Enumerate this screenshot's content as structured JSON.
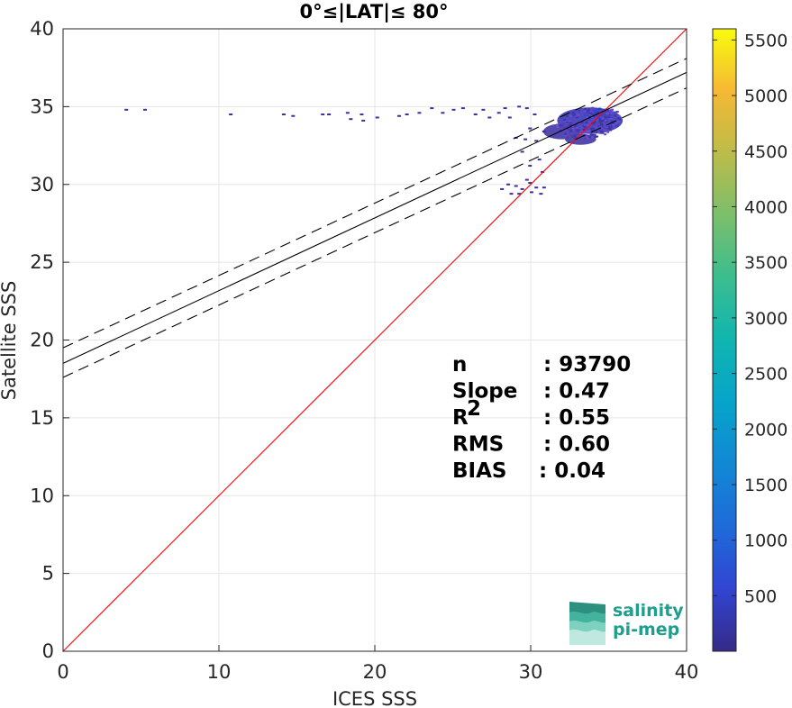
{
  "chart_data": {
    "type": "scatter",
    "subtype": "density-scatter",
    "title": "0°≤|LAT|≤ 80°",
    "xlabel": "ICES SSS",
    "ylabel": "Satellite SSS",
    "xlim": [
      0,
      40
    ],
    "ylim": [
      0,
      40
    ],
    "xticks": [
      0,
      10,
      20,
      30,
      40
    ],
    "yticks": [
      0,
      5,
      10,
      15,
      20,
      25,
      30,
      35,
      40
    ],
    "grid": true,
    "colorbar": {
      "colormap": "parula",
      "ticks": [
        500,
        1000,
        1500,
        2000,
        2500,
        3000,
        3500,
        4000,
        4500,
        5000,
        5500
      ],
      "range": [
        1,
        5600
      ]
    },
    "lines": [
      {
        "name": "identity",
        "color": "#ff0000",
        "style": "solid",
        "x": [
          0,
          40
        ],
        "y": [
          0,
          40
        ]
      },
      {
        "name": "fit",
        "color": "#000000",
        "style": "solid",
        "x": [
          0,
          40
        ],
        "y": [
          18.5,
          37.2
        ]
      },
      {
        "name": "fit-upper",
        "color": "#000000",
        "style": "dashed",
        "x": [
          0,
          40
        ],
        "y": [
          19.5,
          38.1
        ]
      },
      {
        "name": "fit-lower",
        "color": "#000000",
        "style": "dashed",
        "x": [
          0,
          40
        ],
        "y": [
          17.6,
          36.2
        ]
      }
    ],
    "points": [
      [
        4.0,
        34.8
      ],
      [
        5.2,
        34.8
      ],
      [
        10.7,
        34.5
      ],
      [
        14.1,
        34.5
      ],
      [
        14.7,
        34.4
      ],
      [
        16.6,
        34.5
      ],
      [
        17.0,
        34.5
      ],
      [
        18.2,
        34.6
      ],
      [
        18.4,
        34.2
      ],
      [
        19.1,
        34.5
      ],
      [
        19.2,
        34.1
      ],
      [
        20.1,
        34.3
      ],
      [
        21.5,
        34.4
      ],
      [
        22.0,
        34.5
      ],
      [
        22.8,
        34.6
      ],
      [
        23.6,
        34.9
      ],
      [
        24.3,
        34.6
      ],
      [
        25.0,
        34.8
      ],
      [
        25.6,
        34.9
      ],
      [
        26.4,
        34.5
      ],
      [
        26.9,
        34.8
      ],
      [
        27.3,
        34.3
      ],
      [
        27.9,
        34.6
      ],
      [
        28.3,
        34.9
      ],
      [
        28.6,
        34.3
      ],
      [
        29.2,
        35.0
      ],
      [
        29.7,
        34.9
      ],
      [
        30.2,
        34.5
      ],
      [
        29.0,
        33.0
      ],
      [
        29.6,
        32.9
      ],
      [
        29.9,
        33.6
      ],
      [
        30.3,
        32.8
      ],
      [
        30.8,
        33.4
      ],
      [
        29.4,
        32.1
      ],
      [
        30.5,
        31.6
      ],
      [
        30.7,
        30.8
      ],
      [
        29.9,
        31.2
      ],
      [
        28.1,
        29.7
      ],
      [
        28.5,
        30.0
      ],
      [
        29.0,
        29.9
      ],
      [
        29.4,
        29.7
      ],
      [
        29.9,
        30.1
      ],
      [
        30.3,
        29.8
      ],
      [
        30.8,
        29.8
      ],
      [
        29.7,
        30.3
      ],
      [
        28.7,
        29.4
      ],
      [
        29.2,
        29.4
      ],
      [
        30.0,
        29.5
      ],
      [
        30.6,
        29.4
      ]
    ],
    "density_regions": [
      {
        "cx": 33.8,
        "cy": 34.1,
        "rx": 2.1,
        "ry": 0.85,
        "level": 600
      },
      {
        "cx": 34.3,
        "cy": 34.5,
        "rx": 0.9,
        "ry": 0.4,
        "level": 1200
      },
      {
        "cx": 32.0,
        "cy": 33.4,
        "rx": 1.2,
        "ry": 0.5,
        "level": 250
      },
      {
        "cx": 33.2,
        "cy": 32.9,
        "rx": 1.0,
        "ry": 0.35,
        "level": 200
      }
    ],
    "stats": [
      {
        "label": "n",
        "sep": ": 93790"
      },
      {
        "label": "Slope",
        "sep": ": 0.47"
      },
      {
        "label": "R",
        "sup": "2",
        "sep": ": 0.55"
      },
      {
        "label": "RMS",
        "sep": ": 0.60"
      },
      {
        "label": "BIAS",
        "sep": ": 0.04"
      }
    ]
  },
  "logo": {
    "line1": "salinity",
    "line2": "pi-mep",
    "color": "#1e9e8c"
  }
}
